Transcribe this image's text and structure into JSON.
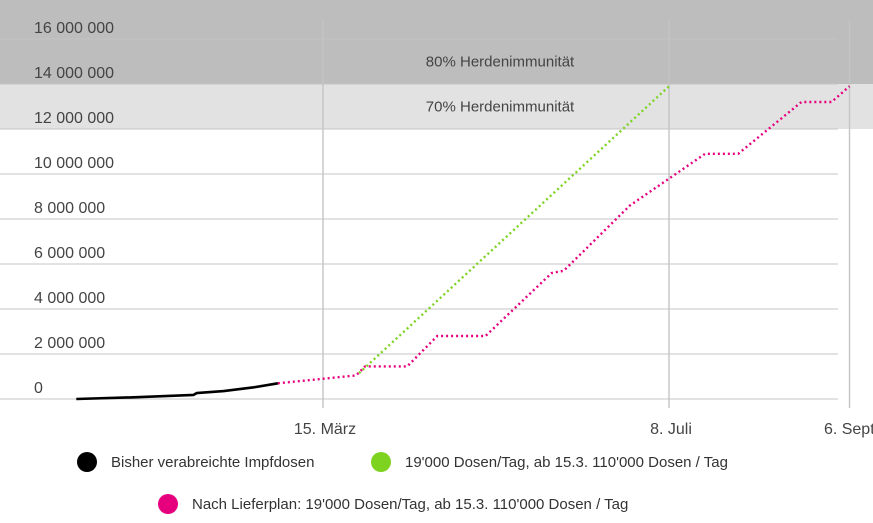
{
  "chart_data": {
    "type": "line",
    "ylim": [
      0,
      16000000
    ],
    "y_ticks": [
      {
        "value": 0,
        "label": "0"
      },
      {
        "value": 2000000,
        "label": "2 000 000"
      },
      {
        "value": 4000000,
        "label": "4 000 000"
      },
      {
        "value": 6000000,
        "label": "6 000 000"
      },
      {
        "value": 8000000,
        "label": "8 000 000"
      },
      {
        "value": 10000000,
        "label": "10 000 000"
      },
      {
        "value": 12000000,
        "label": "12 000 000"
      },
      {
        "value": 14000000,
        "label": "14 000 000"
      },
      {
        "value": 16000000,
        "label": "16 000 000"
      }
    ],
    "xlim": [
      "2020-12-23",
      "2021-09-06"
    ],
    "x_ticks": [
      {
        "value": "2021-03-15",
        "label": "15. März"
      },
      {
        "value": "2021-07-08",
        "label": "8. Juli"
      },
      {
        "value": "2021-09-06",
        "label": "6. Sept."
      }
    ],
    "bands": [
      {
        "label": "80% Herdenimmunität",
        "from": 14000000,
        "to": 16000000,
        "color": "#bdbdbd"
      },
      {
        "label": "70% Herdenimmunität",
        "from": 12000000,
        "to": 14000000,
        "color": "#e2e2e2"
      }
    ],
    "grid": true,
    "series": [
      {
        "name": "Bisher verabreichte Impfdosen",
        "color": "#000000",
        "style": "solid",
        "points": [
          [
            "2020-12-23",
            0
          ],
          [
            "2021-01-10",
            70000
          ],
          [
            "2021-01-31",
            180000
          ],
          [
            "2021-02-01",
            260000
          ],
          [
            "2021-02-10",
            350000
          ],
          [
            "2021-02-20",
            520000
          ],
          [
            "2021-02-28",
            700000
          ]
        ]
      },
      {
        "name": "19'000 Dosen/Tag, ab 15.3. 110'000 Dosen / Tag",
        "color": "#7ed321",
        "style": "dotted",
        "points": [
          [
            "2021-03-27",
            1150000
          ],
          [
            "2021-07-08",
            13900000
          ]
        ]
      },
      {
        "name": "Nach Lieferplan: 19'000 Dosen/Tag, ab 15.3. 110'000 Dosen / Tag",
        "color": "#e6007e",
        "style": "dotted",
        "points": [
          [
            "2021-02-28",
            700000
          ],
          [
            "2021-03-26",
            1050000
          ],
          [
            "2021-03-29",
            1450000
          ],
          [
            "2021-04-12",
            1450000
          ],
          [
            "2021-04-22",
            2800000
          ],
          [
            "2021-05-08",
            2800000
          ],
          [
            "2021-05-30",
            5600000
          ],
          [
            "2021-06-03",
            5700000
          ],
          [
            "2021-06-25",
            8600000
          ],
          [
            "2021-07-20",
            10900000
          ],
          [
            "2021-07-31",
            10900000
          ],
          [
            "2021-08-21",
            13200000
          ],
          [
            "2021-08-31",
            13200000
          ],
          [
            "2021-09-06",
            13900000
          ]
        ]
      }
    ]
  },
  "legend": [
    {
      "label": "Bisher verabreichte Impfdosen",
      "color": "#000000"
    },
    {
      "label": "19'000 Dosen/Tag, ab 15.3. 110'000 Dosen / Tag",
      "color": "#7ed321"
    },
    {
      "label": "Nach Lieferplan: 19'000 Dosen/Tag, ab 15.3. 110'000 Dosen / Tag",
      "color": "#e6007e"
    }
  ]
}
